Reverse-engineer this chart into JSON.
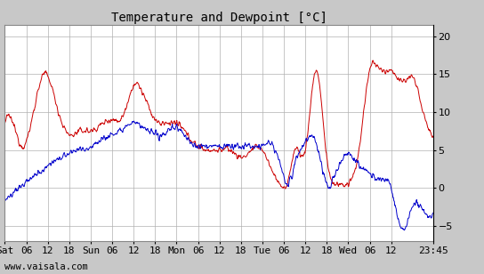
{
  "title": "Temperature and Dewpoint [°C]",
  "ylabel_right_ticks": [
    -5,
    0,
    5,
    10,
    15,
    20
  ],
  "ylim": [
    -7,
    21.5
  ],
  "xlabel_tick_positions": [
    0,
    6,
    12,
    18,
    24,
    30,
    36,
    42,
    48,
    54,
    60,
    66,
    72,
    78,
    84,
    90,
    96,
    102,
    108,
    119.75
  ],
  "xlabel_tick_labels": [
    "Sat",
    "06",
    "12",
    "18",
    "Sun",
    "06",
    "12",
    "18",
    "Mon",
    "06",
    "12",
    "18",
    "Tue",
    "06",
    "12",
    "18",
    "Wed",
    "06",
    "12",
    "23:45"
  ],
  "background_color": "#c8c8c8",
  "plot_bg_color": "#ffffff",
  "grid_color": "#b0b0b0",
  "temp_color": "#cc0000",
  "dewp_color": "#0000cc",
  "watermark": "www.vaisala.com",
  "title_fontsize": 10,
  "tick_fontsize": 8,
  "watermark_fontsize": 7.5,
  "line_width": 0.7,
  "xlim": [
    0,
    119.75
  ]
}
